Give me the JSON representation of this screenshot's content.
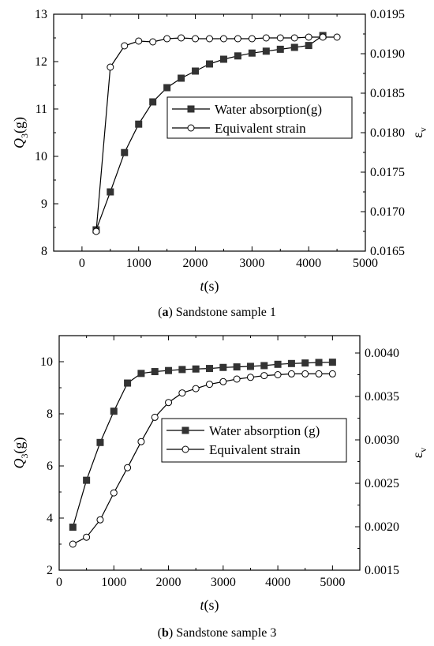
{
  "chart_data": [
    {
      "type": "line",
      "caption_letter": "a",
      "caption_text": " Sandstone sample 1",
      "xlabel_italic": "t",
      "xlabel_rest": "(s)",
      "ylabel_main": "Q",
      "ylabel_sub": "3",
      "ylabel_rest": "(g)",
      "y2label_main": "ε",
      "y2label_sub": "v",
      "xlim": [
        -500,
        5000
      ],
      "ylim": [
        8,
        13
      ],
      "y2lim": [
        0.0165,
        0.0195
      ],
      "xticks": [
        "0",
        "1000",
        "2000",
        "3000",
        "4000",
        "5000"
      ],
      "yticks": [
        "8",
        "9",
        "10",
        "11",
        "12",
        "13"
      ],
      "y2ticks": [
        "0.0165",
        "0.0170",
        "0.0175",
        "0.0180",
        "0.0185",
        "0.0190",
        "0.0195"
      ],
      "legend": [
        "Water absorption(g)",
        "Equivalent strain"
      ],
      "series": [
        {
          "name": "Water absorption(g)",
          "axis": "left",
          "marker": "filled-square",
          "x": [
            250,
            500,
            750,
            1000,
            1250,
            1500,
            1750,
            2000,
            2250,
            2500,
            2750,
            3000,
            3250,
            3500,
            3750,
            4000,
            4250
          ],
          "values": [
            8.45,
            9.25,
            10.08,
            10.68,
            11.15,
            11.45,
            11.65,
            11.8,
            11.95,
            12.05,
            12.12,
            12.18,
            12.22,
            12.26,
            12.3,
            12.34,
            12.55
          ]
        },
        {
          "name": "Equivalent strain",
          "axis": "right",
          "marker": "open-circle",
          "x": [
            250,
            500,
            750,
            1000,
            1250,
            1500,
            1750,
            2000,
            2250,
            2500,
            2750,
            3000,
            3250,
            3500,
            3750,
            4000,
            4250,
            4500
          ],
          "values": [
            0.01675,
            0.01883,
            0.0191,
            0.01916,
            0.01915,
            0.01919,
            0.0192,
            0.01919,
            0.01919,
            0.01919,
            0.01919,
            0.01919,
            0.0192,
            0.0192,
            0.0192,
            0.01921,
            0.01921,
            0.01921
          ]
        }
      ]
    },
    {
      "type": "line",
      "caption_letter": "b",
      "caption_text": " Sandstone sample 3",
      "xlabel_italic": "t",
      "xlabel_rest": "(s)",
      "ylabel_main": "Q",
      "ylabel_sub": "3",
      "ylabel_rest": "(g)",
      "y2label_main": "ε",
      "y2label_sub": "v",
      "xlim": [
        0,
        5500
      ],
      "ylim": [
        2,
        11
      ],
      "y2lim": [
        0.0015,
        0.0042
      ],
      "xticks": [
        "0",
        "1000",
        "2000",
        "3000",
        "4000",
        "5000"
      ],
      "yticks": [
        "2",
        "4",
        "6",
        "8",
        "10"
      ],
      "y2ticks": [
        "0.0015",
        "0.0020",
        "0.0025",
        "0.0030",
        "0.0035",
        "0.0040"
      ],
      "legend": [
        "Water absorption (g)",
        "Equivalent strain"
      ],
      "series": [
        {
          "name": "Water absorption (g)",
          "axis": "left",
          "marker": "filled-square",
          "x": [
            250,
            500,
            750,
            1000,
            1250,
            1500,
            1750,
            2000,
            2250,
            2500,
            2750,
            3000,
            3250,
            3500,
            3750,
            4000,
            4250,
            4500,
            4750,
            5000
          ],
          "values": [
            3.65,
            5.45,
            6.9,
            8.1,
            9.18,
            9.55,
            9.62,
            9.66,
            9.7,
            9.72,
            9.74,
            9.78,
            9.8,
            9.82,
            9.85,
            9.9,
            9.93,
            9.95,
            9.97,
            9.98
          ]
        },
        {
          "name": "Equivalent strain",
          "axis": "right",
          "marker": "open-circle",
          "x": [
            250,
            500,
            750,
            1000,
            1250,
            1500,
            1750,
            2000,
            2250,
            2500,
            2750,
            3000,
            3250,
            3500,
            3750,
            4000,
            4250,
            4500,
            4750,
            5000
          ],
          "values": [
            0.0018,
            0.00188,
            0.00208,
            0.00239,
            0.00268,
            0.00298,
            0.00326,
            0.00343,
            0.00354,
            0.00359,
            0.00364,
            0.00367,
            0.0037,
            0.00372,
            0.00374,
            0.00375,
            0.00376,
            0.00376,
            0.00376,
            0.00376
          ]
        }
      ]
    }
  ]
}
